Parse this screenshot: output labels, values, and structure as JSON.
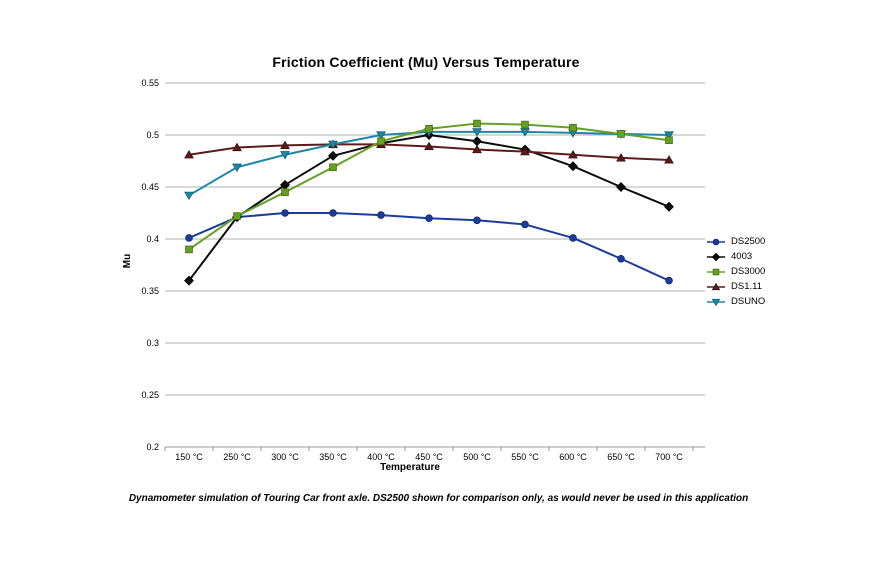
{
  "chart_data": {
    "type": "line",
    "title": "Friction Coefficient (Mu) Versus Temperature",
    "xlabel": "Temperature",
    "ylabel": "Mu",
    "footnote": "Dynamometer simulation of Touring Car front axle. DS2500 shown for comparison only, as would never be used in this application",
    "categories": [
      "150 °C",
      "250 °C",
      "300 °C",
      "350 °C",
      "400 °C",
      "450 °C",
      "500 °C",
      "550 °C",
      "600 °C",
      "650 °C",
      "700 °C"
    ],
    "ylim": [
      0.2,
      0.55
    ],
    "ytick_step": 0.05,
    "ytick_labels": [
      "0.55",
      "0.5",
      "0.45",
      "0.4",
      "0.35",
      "0.3",
      "0.25",
      "0.2"
    ],
    "grid": true,
    "legend_position": "right",
    "grid_color": "#b2b2b2",
    "axis_color": "#999999",
    "series": [
      {
        "name": "DS2500",
        "marker": "circle",
        "color": "#1b3c9b",
        "edge": "#12296e",
        "values": [
          0.401,
          0.421,
          0.425,
          0.425,
          0.423,
          0.42,
          0.418,
          0.414,
          0.401,
          0.381,
          0.36
        ]
      },
      {
        "name": "4003",
        "marker": "diamond",
        "color": "#0d0d0d",
        "edge": "#000000",
        "values": [
          0.36,
          0.421,
          0.452,
          0.48,
          0.492,
          0.5,
          0.494,
          0.486,
          0.47,
          0.45,
          0.431
        ]
      },
      {
        "name": "DS3000",
        "marker": "square",
        "color": "#66a023",
        "edge": "#456f15",
        "values": [
          0.39,
          0.422,
          0.445,
          0.469,
          0.494,
          0.506,
          0.511,
          0.51,
          0.507,
          0.501,
          0.495
        ]
      },
      {
        "name": "DS1.11",
        "marker": "triangle-up",
        "color": "#5e1b1b",
        "edge": "#3a0f0f",
        "values": [
          0.481,
          0.488,
          0.49,
          0.491,
          0.491,
          0.489,
          0.486,
          0.484,
          0.481,
          0.478,
          0.476
        ]
      },
      {
        "name": "DSUNO",
        "marker": "triangle-down",
        "color": "#1e87a5",
        "edge": "#115e75",
        "values": [
          0.442,
          0.469,
          0.481,
          0.491,
          0.5,
          0.503,
          0.503,
          0.503,
          0.502,
          0.501,
          0.5
        ]
      }
    ]
  }
}
